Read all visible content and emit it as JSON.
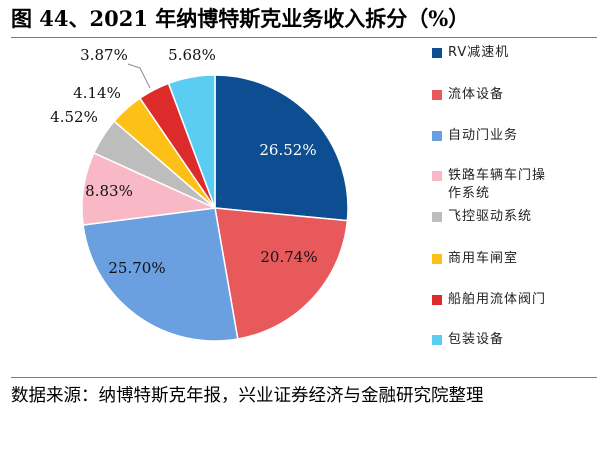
{
  "title": "图 44、2021 年纳博特斯克业务收入拆分（%）",
  "source": "数据来源：纳博特斯克年报，兴业证券经济与金融研究院整理",
  "chart_data": {
    "type": "pie",
    "title": "2021 年纳博特斯克业务收入拆分（%）",
    "slices": [
      {
        "label": "RV减速机",
        "value": 26.52,
        "value_label": "26.52%",
        "color": "#0d4d92"
      },
      {
        "label": "流体设备",
        "value": 20.74,
        "value_label": "20.74%",
        "color": "#e8595c"
      },
      {
        "label": "自动门业务",
        "value": 25.7,
        "value_label": "25.70%",
        "color": "#6a9fe0"
      },
      {
        "label": "铁路车辆车门操作系统",
        "value": 8.83,
        "value_label": "8.83%",
        "color": "#f8b8c6"
      },
      {
        "label": "飞控驱动系统",
        "value": 4.52,
        "value_label": "4.52%",
        "color": "#bdbdbd"
      },
      {
        "label": "商用车闸室",
        "value": 4.14,
        "value_label": "4.14%",
        "color": "#fcc016"
      },
      {
        "label": "船舶用流体阀门",
        "value": 3.87,
        "value_label": "3.87%",
        "color": "#dd2a2a"
      },
      {
        "label": "包装设备",
        "value": 5.68,
        "value_label": "5.68%",
        "color": "#5bcdf3"
      }
    ],
    "legend_position": "right"
  }
}
